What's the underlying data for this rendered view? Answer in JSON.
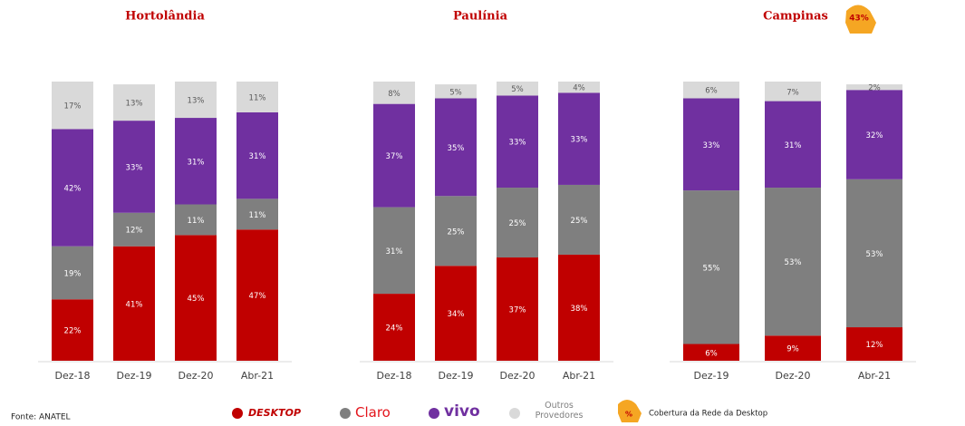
{
  "chart_data": [
    {
      "type": "stacked_bar",
      "title": "Hortolândia",
      "categories": [
        "Dez-18",
        "Dez-19",
        "Dez-20",
        "Abr-21"
      ],
      "ylim": [
        0,
        100
      ],
      "series": [
        {
          "name": "DESKTOP",
          "color": "#c00000",
          "values": [
            22,
            41,
            45,
            47
          ],
          "value_labels": [
            "22%",
            "41%",
            "45%",
            "47%"
          ]
        },
        {
          "name": "Claro",
          "color": "#7f7f7f",
          "values": [
            19,
            12,
            11,
            11
          ],
          "value_labels": [
            "19%",
            "12%",
            "11%",
            "11%"
          ]
        },
        {
          "name": "vivo",
          "color": "#7030a0",
          "values": [
            42,
            33,
            31,
            31
          ],
          "value_labels": [
            "42%",
            "33%",
            "31%",
            "31%"
          ]
        },
        {
          "name": "Outros Provedores",
          "color": "#d9d9d9",
          "values": [
            17,
            13,
            13,
            11
          ],
          "value_labels": [
            "17%",
            "13%",
            "13%",
            "11%"
          ]
        }
      ]
    },
    {
      "type": "stacked_bar",
      "title": "Paulínia",
      "categories": [
        "Dez-18",
        "Dez-19",
        "Dez-20",
        "Abr-21"
      ],
      "ylim": [
        0,
        100
      ],
      "series": [
        {
          "name": "DESKTOP",
          "color": "#c00000",
          "values": [
            24,
            34,
            37,
            38
          ],
          "value_labels": [
            "24%",
            "34%",
            "37%",
            "38%"
          ]
        },
        {
          "name": "Claro",
          "color": "#7f7f7f",
          "values": [
            31,
            25,
            25,
            25
          ],
          "value_labels": [
            "31%",
            "25%",
            "25%",
            "25%"
          ]
        },
        {
          "name": "vivo",
          "color": "#7030a0",
          "values": [
            37,
            35,
            33,
            33
          ],
          "value_labels": [
            "37%",
            "35%",
            "33%",
            "33%"
          ]
        },
        {
          "name": "Outros Provedores",
          "color": "#d9d9d9",
          "values": [
            8,
            5,
            5,
            4
          ],
          "value_labels": [
            "8%",
            "5%",
            "5%",
            "4%"
          ]
        }
      ]
    },
    {
      "type": "stacked_bar",
      "title": "Campinas",
      "categories": [
        "Dez-19",
        "Dez-20",
        "Abr-21"
      ],
      "ylim": [
        0,
        100
      ],
      "annotation": {
        "value": 43,
        "label": "43%"
      },
      "series": [
        {
          "name": "DESKTOP",
          "color": "#c00000",
          "values": [
            6,
            9,
            12
          ],
          "value_labels": [
            "6%",
            "9%",
            "12%"
          ]
        },
        {
          "name": "Claro",
          "color": "#7f7f7f",
          "values": [
            55,
            53,
            53
          ],
          "value_labels": [
            "55%",
            "53%",
            "53%"
          ]
        },
        {
          "name": "vivo",
          "color": "#7030a0",
          "values": [
            33,
            31,
            32
          ],
          "value_labels": [
            "33%",
            "31%",
            "32%"
          ]
        },
        {
          "name": "Outros Provedores",
          "color": "#d9d9d9",
          "values": [
            6,
            7,
            2
          ],
          "value_labels": [
            "6%",
            "7%",
            "2%"
          ]
        }
      ]
    }
  ],
  "coverage_legend": {
    "icon": "%",
    "label": "Cobertura da Rede da Desktop"
  },
  "source": "Fonte: ANATEL"
}
